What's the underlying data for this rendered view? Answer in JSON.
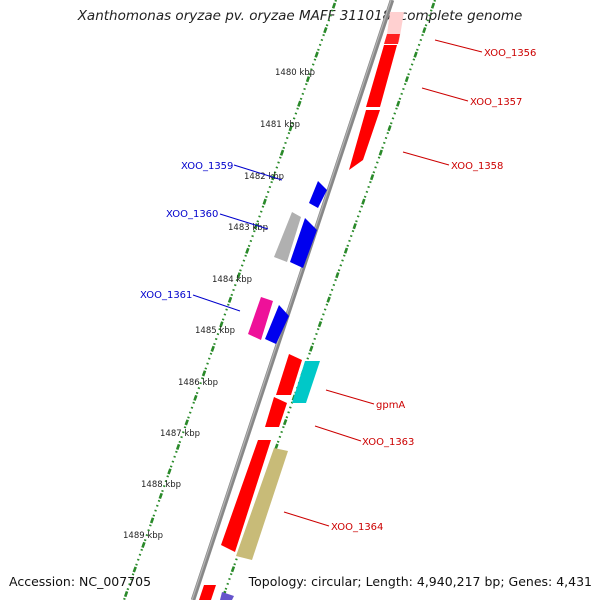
{
  "title": "Xanthomonas oryzae pv. oryzae MAFF 311018, complete genome",
  "footer": {
    "accession": "Accession: NC_007705",
    "topology": "Topology: circular; Length: 4,940,217 bp; Genes: 4,431"
  },
  "kbp_ticks": [
    "1480 kbp",
    "1481 kbp",
    "1482 kbp",
    "1483 kbp",
    "1484 kbp",
    "1485 kbp",
    "1486 kbp",
    "1487 kbp",
    "1488 kbp",
    "1489 kbp"
  ],
  "gene_labels": [
    {
      "text": "XOO_1356",
      "strand": "forward"
    },
    {
      "text": "XOO_1357",
      "strand": "forward"
    },
    {
      "text": "XOO_1358",
      "strand": "forward"
    },
    {
      "text": "XOO_1359",
      "strand": "reverse"
    },
    {
      "text": "XOO_1360",
      "strand": "reverse"
    },
    {
      "text": "XOO_1361",
      "strand": "reverse"
    },
    {
      "text": "gpmA",
      "strand": "forward"
    },
    {
      "text": "XOO_1363",
      "strand": "forward"
    },
    {
      "text": "XOO_1364",
      "strand": "forward"
    }
  ],
  "colors": {
    "forward_label": "#cc0000",
    "reverse_label": "#0000cc",
    "forward_gene": "#ff0000",
    "reverse_gene": "#0000ee",
    "pink_gene": "#ee1199",
    "grey_gene": "#b0b0b0",
    "cyan_gene": "#00c8c8",
    "olive_gene": "#c8bb78",
    "backbone": "#888888",
    "tick_dots": "#2a8a2a"
  }
}
